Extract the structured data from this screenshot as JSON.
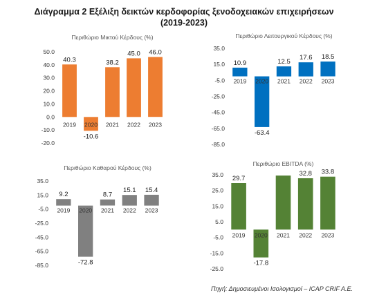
{
  "header": {
    "title_line1": "Διάγραμμα 2 Εξέλιξη δεικτών κερδοφορίας ξενοδοχειακών επιχειρήσεων",
    "title_line2": "(2019-2023)"
  },
  "footer": {
    "source": "Πηγή: Δημοσιευμένοι Ισολογισμοί – ICAP CRIF A.E."
  },
  "chart_data": [
    {
      "type": "bar",
      "title": "Περιθώριο Μικτού Κέρδους (%)",
      "categories": [
        "2019",
        "2020",
        "2021",
        "2022",
        "2023"
      ],
      "values": [
        40.3,
        -10.6,
        38.2,
        45.0,
        46.0
      ],
      "value_labels": [
        "40.3",
        "-10.6",
        "38.2",
        "45.0",
        "46.0"
      ],
      "ylim": [
        -20,
        50
      ],
      "yticks": [
        50,
        40,
        30,
        20,
        10,
        0,
        -10,
        -20
      ],
      "ytick_labels": [
        "50.0",
        "40.0",
        "30.0",
        "20.0",
        "10.0",
        "0.0",
        "-10.0",
        "-20.0"
      ],
      "color": "#ed7d31",
      "grid": false,
      "legend": "none"
    },
    {
      "type": "bar",
      "title": "Περιθώριο Λειτουργικού Κέρδους (%)",
      "categories": [
        "2019",
        "2020",
        "2021",
        "2022",
        "2023"
      ],
      "values": [
        10.9,
        -63.4,
        12.5,
        17.6,
        18.5
      ],
      "value_labels": [
        "10.9",
        "-63.4",
        "12.5",
        "17.6",
        "18.5"
      ],
      "ylim": [
        -85,
        35
      ],
      "yticks": [
        35,
        15,
        -5,
        -25,
        -45,
        -65,
        -85
      ],
      "ytick_labels": [
        "35.0",
        "15.0",
        "-5.0",
        "-25.0",
        "-45.0",
        "-65.0",
        "-85.0"
      ],
      "color": "#0070c0",
      "grid": false,
      "legend": "none"
    },
    {
      "type": "bar",
      "title": "Περιθώριο Καθαρού Κέρδους (%)",
      "categories": [
        "2019",
        "2020",
        "2021",
        "2022",
        "2023"
      ],
      "values": [
        9.2,
        -72.8,
        8.7,
        15.1,
        15.4
      ],
      "value_labels": [
        "9.2",
        "-72.8",
        "8.7",
        "15.1",
        "15.4"
      ],
      "ylim": [
        -85,
        35
      ],
      "yticks": [
        35,
        15,
        -5,
        -25,
        -45,
        -65,
        -85
      ],
      "ytick_labels": [
        "35.0",
        "15.0",
        "-5.0",
        "-25.0",
        "-45.0",
        "-65.0",
        "-85.0"
      ],
      "color": "#808080",
      "grid": false,
      "legend": "none"
    },
    {
      "type": "bar",
      "title": "Περιθώριο EBITDA (%)",
      "categories": [
        "2019",
        "2020",
        "2021",
        "2022",
        "2023"
      ],
      "values": [
        29.7,
        -17.8,
        34.5,
        32.8,
        33.8
      ],
      "value_labels": [
        "29.7",
        "-17.8",
        "",
        "32.8",
        "33.8"
      ],
      "ylim": [
        -25,
        35
      ],
      "yticks": [
        35,
        25,
        15,
        5,
        -5,
        -15,
        -25
      ],
      "ytick_labels": [
        "35.0",
        "25.0",
        "15.0",
        "5.0",
        "-5.0",
        "-15.0",
        "-25.0"
      ],
      "color": "#548235",
      "grid": false,
      "legend": "none"
    }
  ]
}
